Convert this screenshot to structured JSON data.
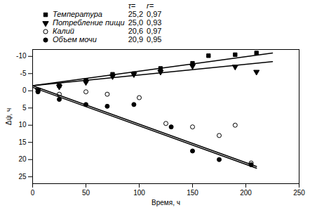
{
  "chart_data": {
    "type": "scatter",
    "xlabel": "Время, ч",
    "ylabel": "Δψ, ч",
    "xlim": [
      0,
      250
    ],
    "ylim": [
      27,
      -12
    ],
    "xticks": [
      0,
      50,
      100,
      150,
      200,
      250
    ],
    "yticks": [
      -10,
      -5,
      0,
      5,
      10,
      15,
      20,
      25
    ],
    "grid": false,
    "legend": "top",
    "legend_columns": [
      "τ=",
      "r="
    ],
    "series": [
      {
        "name": "Температура",
        "color": "black",
        "marker": "square",
        "x": [
          5,
          25,
          50,
          75,
          95,
          120,
          150,
          165,
          190,
          210
        ],
        "values": [
          -0.1,
          -1.5,
          -3.0,
          -4.8,
          -5.0,
          -6.5,
          -8.0,
          -10.2,
          -10.5,
          -11.0
        ],
        "tau": {
          "value": 25.2,
          "label": "25,2"
        },
        "r": {
          "value": 0.97,
          "label": "0,97"
        },
        "trend_line": {
          "x": [
            0,
            225
          ],
          "values": [
            -1.5,
            -11.0
          ]
        }
      },
      {
        "name": "Потребление пищи",
        "color": "black",
        "marker": "triangle-down",
        "x": [
          5,
          25,
          50,
          75,
          95,
          120,
          150,
          190,
          210
        ],
        "values": [
          -0.2,
          -1.2,
          -2.5,
          -4.2,
          -4.8,
          -5.5,
          -7.2,
          -7.0,
          -5.5
        ],
        "tau": {
          "value": 25.0,
          "label": "25,0"
        },
        "r": {
          "value": 0.93,
          "label": "0,93"
        },
        "trend_line": {
          "x": [
            0,
            225
          ],
          "values": [
            -1.5,
            -8.5
          ]
        }
      },
      {
        "name": "Калий",
        "color": "black",
        "marker": "circle-open",
        "x": [
          5,
          25,
          50,
          70,
          100,
          125,
          150,
          175,
          190,
          205
        ],
        "values": [
          0.1,
          1.0,
          0.3,
          1.0,
          2.0,
          9.5,
          10.5,
          13.0,
          10.0,
          21.0
        ],
        "tau": {
          "value": 20.6,
          "label": "20,6"
        },
        "r": {
          "value": 0.97,
          "label": "0,97"
        },
        "trend_line": {
          "x": [
            0,
            210
          ],
          "values": [
            -1.5,
            22.0
          ]
        }
      },
      {
        "name": "Объем мочи",
        "color": "black",
        "marker": "circle",
        "x": [
          5,
          25,
          50,
          70,
          95,
          130,
          150,
          175,
          205
        ],
        "values": [
          0.3,
          2.5,
          4.0,
          4.5,
          4.0,
          10.5,
          17.5,
          20.0,
          21.5
        ],
        "tau": {
          "value": 20.9,
          "label": "20,9"
        },
        "r": {
          "value": 0.95,
          "label": "0,95"
        },
        "trend_line": {
          "x": [
            0,
            210
          ],
          "values": [
            -1.0,
            22.5
          ]
        }
      }
    ]
  }
}
